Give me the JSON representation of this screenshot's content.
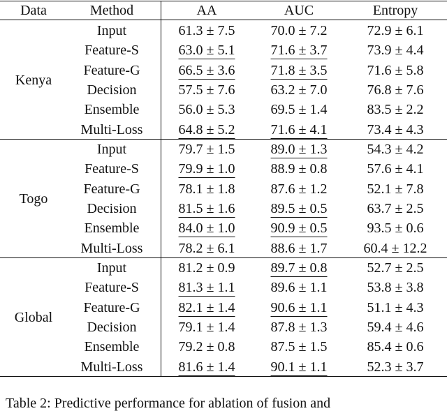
{
  "header": [
    "Data",
    "Method",
    "AA",
    "AUC",
    "Entropy"
  ],
  "groups": [
    {
      "data": "Kenya",
      "rows": [
        {
          "method": "Input",
          "cells": [
            "61.3 ± 7.5",
            "70.0 ± 7.2",
            "72.9 ± 6.1"
          ],
          "underlined": [
            false,
            false,
            false
          ]
        },
        {
          "method": "Feature-S",
          "cells": [
            "63.0 ± 5.1",
            "71.6 ± 3.7",
            "73.9 ± 4.4"
          ],
          "underlined": [
            true,
            true,
            false
          ]
        },
        {
          "method": "Feature-G",
          "cells": [
            "66.5 ± 3.6",
            "71.8 ± 3.5",
            "71.6 ± 5.8"
          ],
          "underlined": [
            true,
            true,
            false
          ]
        },
        {
          "method": "Decision",
          "cells": [
            "57.5 ± 7.6",
            "63.2 ± 7.0",
            "76.8 ± 7.6"
          ],
          "underlined": [
            false,
            false,
            false
          ]
        },
        {
          "method": "Ensemble",
          "cells": [
            "56.0 ± 5.3",
            "69.5 ± 1.4",
            "83.5 ± 2.2"
          ],
          "underlined": [
            false,
            false,
            false
          ]
        },
        {
          "method": "Multi-Loss",
          "cells": [
            "64.8 ± 5.2",
            "71.6 ± 4.1",
            "73.4 ± 4.3"
          ],
          "underlined": [
            true,
            true,
            false
          ]
        }
      ]
    },
    {
      "data": "Togo",
      "rows": [
        {
          "method": "Input",
          "cells": [
            "79.7 ± 1.5",
            "89.0 ± 1.3",
            "54.3 ± 4.2"
          ],
          "underlined": [
            false,
            true,
            false
          ]
        },
        {
          "method": "Feature-S",
          "cells": [
            "79.9 ± 1.0",
            "88.9 ± 0.8",
            "57.6 ± 4.1"
          ],
          "underlined": [
            true,
            false,
            false
          ]
        },
        {
          "method": "Feature-G",
          "cells": [
            "78.1 ± 1.8",
            "87.6 ± 1.2",
            "52.1 ± 7.8"
          ],
          "underlined": [
            false,
            false,
            false
          ]
        },
        {
          "method": "Decision",
          "cells": [
            "81.5 ± 1.6",
            "89.5 ± 0.5",
            "63.7 ± 2.5"
          ],
          "underlined": [
            true,
            true,
            false
          ]
        },
        {
          "method": "Ensemble",
          "cells": [
            "84.0 ± 1.0",
            "90.9 ± 0.5",
            "93.5 ± 0.6"
          ],
          "underlined": [
            true,
            true,
            false
          ]
        },
        {
          "method": "Multi-Loss",
          "cells": [
            "78.2 ± 6.1",
            "88.6 ± 1.7",
            "60.4 ± 12.2"
          ],
          "underlined": [
            false,
            false,
            false
          ]
        }
      ]
    },
    {
      "data": "Global",
      "rows": [
        {
          "method": "Input",
          "cells": [
            "81.2 ± 0.9",
            "89.7 ± 0.8",
            "52.7 ± 2.5"
          ],
          "underlined": [
            false,
            true,
            false
          ]
        },
        {
          "method": "Feature-S",
          "cells": [
            "81.3 ± 1.1",
            "89.6 ± 1.1",
            "53.8 ± 3.8"
          ],
          "underlined": [
            true,
            false,
            false
          ]
        },
        {
          "method": "Feature-G",
          "cells": [
            "82.1 ± 1.4",
            "90.6 ± 1.1",
            "51.1 ± 4.3"
          ],
          "underlined": [
            true,
            true,
            false
          ]
        },
        {
          "method": "Decision",
          "cells": [
            "79.1 ± 1.4",
            "87.8 ± 1.3",
            "59.4 ± 4.6"
          ],
          "underlined": [
            false,
            false,
            false
          ]
        },
        {
          "method": "Ensemble",
          "cells": [
            "79.2 ± 0.8",
            "87.5 ± 1.5",
            "85.4 ± 0.6"
          ],
          "underlined": [
            false,
            false,
            false
          ]
        },
        {
          "method": "Multi-Loss",
          "cells": [
            "81.6 ± 1.4",
            "90.1 ± 1.1",
            "52.3 ± 3.7"
          ],
          "underlined": [
            true,
            true,
            false
          ]
        }
      ]
    }
  ],
  "caption": "Table 2: Predictive performance for ablation of fusion and"
}
